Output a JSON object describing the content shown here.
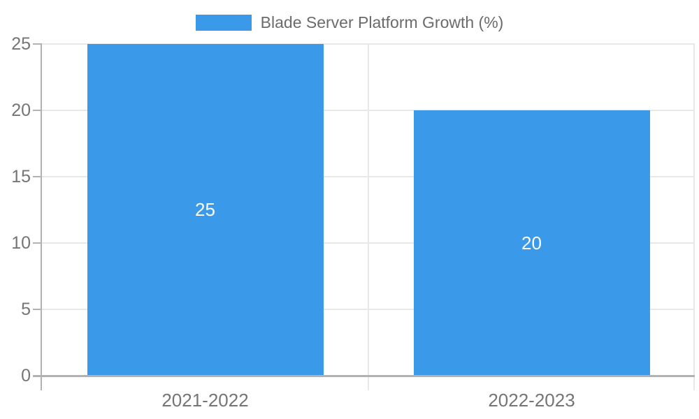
{
  "chart_data": {
    "type": "bar",
    "title": "Blade Server Platform Growth (%)",
    "categories": [
      "2021-2022",
      "2022-2023"
    ],
    "values": [
      25,
      20
    ],
    "bar_value_labels": [
      "25",
      "20"
    ],
    "xlabel": "",
    "ylabel": "",
    "ylim": [
      0,
      25
    ],
    "yticks": [
      0,
      5,
      10,
      15,
      20,
      25
    ],
    "grid": true,
    "legend_position": "top-center",
    "colors": {
      "bar": "#3B99EA",
      "grid": "#E8E8E8",
      "axis": "#B2B2B2",
      "tick_text": "#757575",
      "legend_text": "#6B6B6B",
      "bar_label_text": "#FFFFFF",
      "background": "#FFFFFF"
    }
  }
}
